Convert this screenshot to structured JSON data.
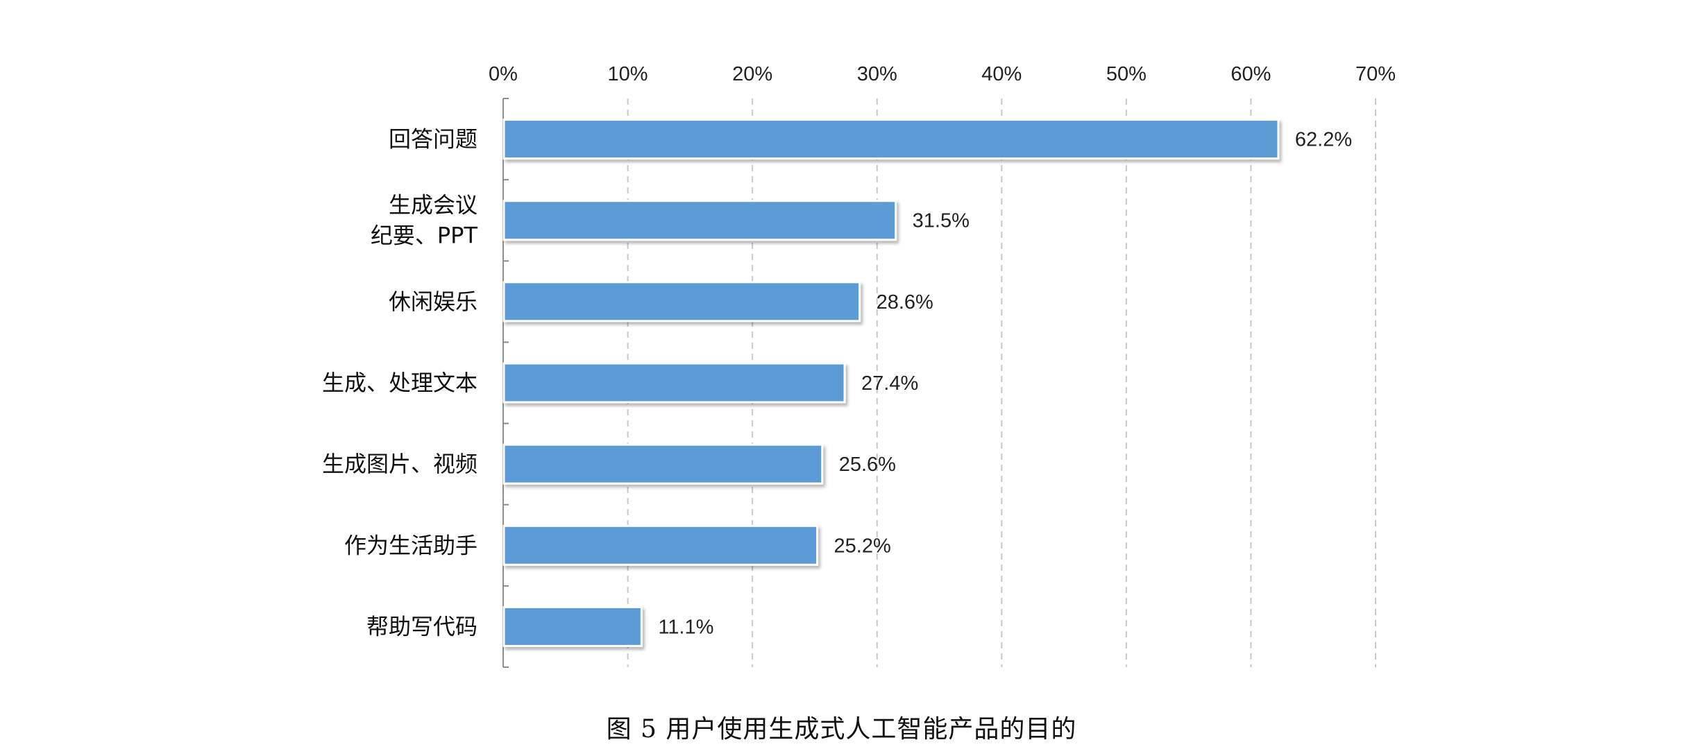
{
  "chart_data": {
    "type": "bar",
    "orientation": "horizontal",
    "categories": [
      [
        "回答问题"
      ],
      [
        "生成会议",
        "纪要、PPT"
      ],
      [
        "休闲娱乐"
      ],
      [
        "生成、处理文本"
      ],
      [
        "生成图片、视频"
      ],
      [
        "作为生活助手"
      ],
      [
        "帮助写代码"
      ]
    ],
    "values": [
      62.2,
      31.5,
      28.6,
      27.4,
      25.6,
      25.2,
      11.1
    ],
    "data_labels": [
      "62.2%",
      "31.5%",
      "28.6%",
      "27.4%",
      "25.6%",
      "25.2%",
      "11.1%"
    ],
    "xlim": [
      0,
      70
    ],
    "x_ticks": [
      0,
      10,
      20,
      30,
      40,
      50,
      60,
      70
    ],
    "x_tick_labels": [
      "0%",
      "10%",
      "20%",
      "30%",
      "40%",
      "50%",
      "60%",
      "70%"
    ],
    "x_axis_position": "top",
    "grid": "vertical dashed",
    "legend": "none",
    "bar_color": "#5b9bd5",
    "caption": "图 5 用户使用生成式人工智能产品的目的"
  }
}
